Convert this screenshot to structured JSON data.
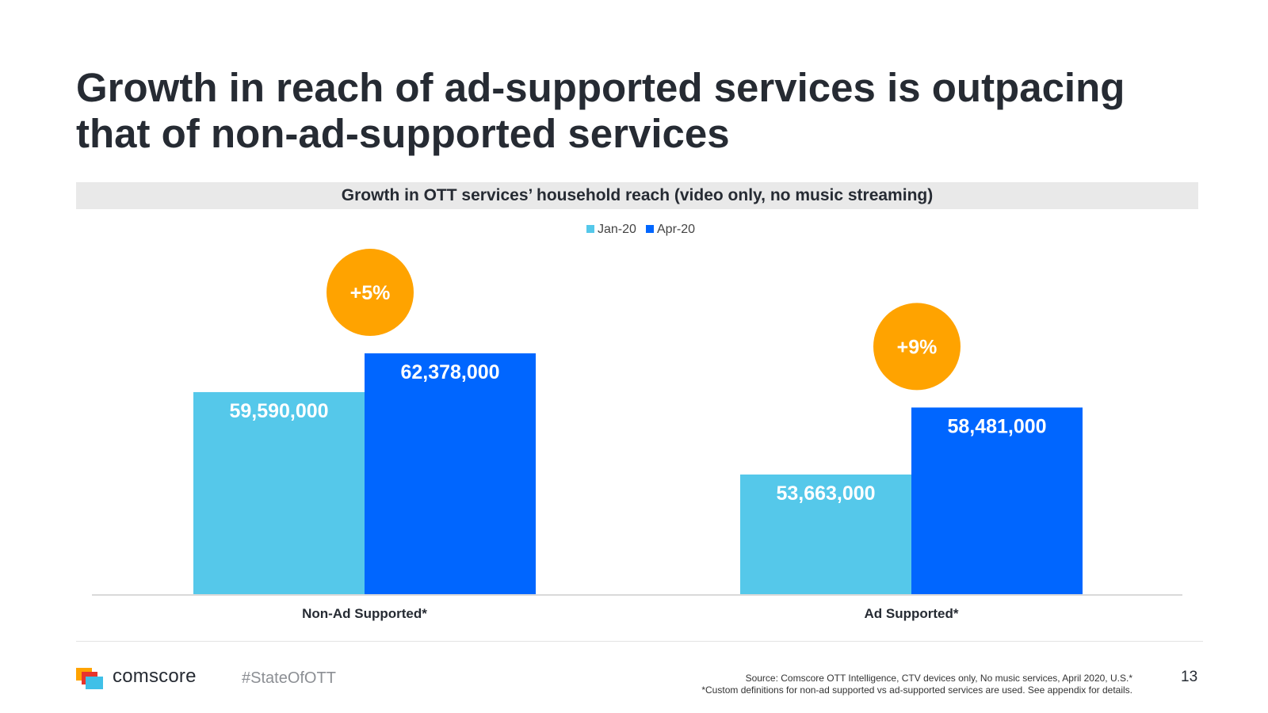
{
  "title": "Growth in reach of ad-supported services is outpacing that of non-ad-supported services",
  "colors": {
    "jan": "#55c8ea",
    "apr": "#0066ff",
    "badge": "#ffa300",
    "title": "#262b33"
  },
  "chart_data": {
    "type": "bar",
    "title": "Growth in OTT services’ household reach (video only, no music streaming)",
    "categories": [
      "Non-Ad Supported*",
      "Ad Supported*"
    ],
    "series": [
      {
        "name": "Jan-20",
        "values": [
          59590000,
          53663000
        ],
        "labels": [
          "59,590,000",
          "53,663,000"
        ]
      },
      {
        "name": "Apr-20",
        "values": [
          62378000,
          58481000
        ],
        "labels": [
          "62,378,000",
          "58,481,000"
        ]
      }
    ],
    "annotations": [
      "+5%",
      "+9%"
    ],
    "ylim": [
      45000000,
      65000000
    ],
    "xlabel": "",
    "ylabel": "",
    "legend": "top-center",
    "grid": false
  },
  "footer": {
    "brand": "comscore",
    "hashtag": "#StateOfOTT",
    "source_line1": "Source: Comscore OTT Intelligence, CTV devices only, No music services, April 2020, U.S.*",
    "source_line2": "*Custom definitions for non-ad supported vs ad-supported services are used. See appendix for details.",
    "page_number": "13"
  }
}
